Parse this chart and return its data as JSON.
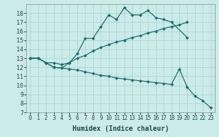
{
  "xlabel": "Humidex (Indice chaleur)",
  "bg_color": "#cceaea",
  "grid_color": "#aad4d4",
  "line_color": "#1a6b6b",
  "xlim": [
    -0.5,
    23.5
  ],
  "ylim": [
    7,
    19
  ],
  "xticks": [
    0,
    1,
    2,
    3,
    4,
    5,
    6,
    7,
    8,
    9,
    10,
    11,
    12,
    13,
    14,
    15,
    16,
    17,
    18,
    19,
    20,
    21,
    22,
    23
  ],
  "yticks": [
    7,
    8,
    9,
    10,
    11,
    12,
    13,
    14,
    15,
    16,
    17,
    18
  ],
  "line1_x": [
    0,
    1,
    2,
    3,
    4,
    5,
    6,
    7,
    8,
    9,
    10,
    11,
    12,
    13,
    14,
    15,
    16,
    17,
    18,
    20
  ],
  "line1_y": [
    13,
    13,
    12.5,
    12,
    11.9,
    12.5,
    13.5,
    15.2,
    15.2,
    16.5,
    17.8,
    17.3,
    18.6,
    17.8,
    17.8,
    18.3,
    17.5,
    17.3,
    17.0,
    15.3
  ],
  "line2_x": [
    0,
    1,
    2,
    3,
    4,
    5,
    6,
    7,
    8,
    9,
    10,
    11,
    12,
    13,
    14,
    15,
    16,
    17,
    18,
    19,
    20
  ],
  "line2_y": [
    13,
    13,
    12.5,
    12.5,
    12.3,
    12.5,
    13.0,
    13.3,
    13.8,
    14.2,
    14.5,
    14.8,
    15.0,
    15.3,
    15.5,
    15.8,
    16.0,
    16.3,
    16.5,
    16.7,
    17.0
  ],
  "line3_x": [
    0,
    1,
    2,
    3,
    4,
    5,
    6,
    7,
    8,
    9,
    10,
    11,
    12,
    13,
    14,
    15,
    16,
    17,
    18,
    19,
    20,
    21,
    22,
    23
  ],
  "line3_y": [
    13,
    13,
    12.5,
    12,
    11.9,
    11.8,
    11.7,
    11.5,
    11.3,
    11.1,
    11.0,
    10.8,
    10.7,
    10.6,
    10.5,
    10.4,
    10.3,
    10.2,
    10.1,
    11.8,
    9.8,
    8.8,
    8.3,
    7.5
  ]
}
